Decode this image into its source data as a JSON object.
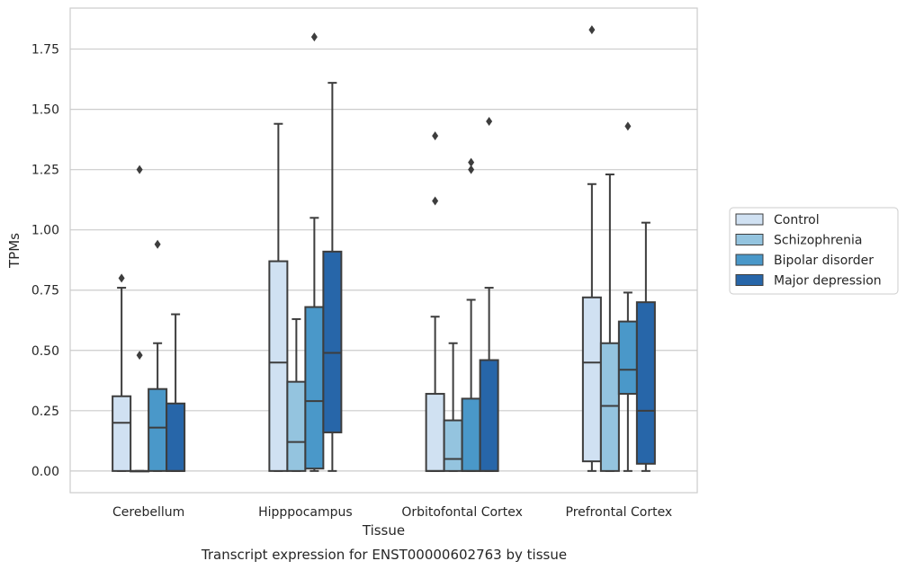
{
  "caption": "Transcript expression for ENST00000602763 by tissue",
  "chart_data": {
    "type": "box",
    "xlabel": "Tissue",
    "ylabel": "TPMs",
    "ylim": [
      -0.09,
      1.92
    ],
    "yticks": [
      0.0,
      0.25,
      0.5,
      0.75,
      1.0,
      1.25,
      1.5,
      1.75
    ],
    "ytick_labels": [
      "0.00",
      "0.25",
      "0.50",
      "0.75",
      "1.00",
      "1.25",
      "1.50",
      "1.75"
    ],
    "categories": [
      "Cerebellum",
      "Hipppocampus",
      "Orbitofontal Cortex",
      "Prefrontal Cortex"
    ],
    "grid": "horizontal",
    "legend_position": "right",
    "series": [
      {
        "name": "Control",
        "color": "#d0e1f2",
        "boxes": [
          {
            "min": 0.0,
            "q1": 0.0,
            "median": 0.2,
            "q3": 0.31,
            "max": 0.76,
            "outliers": [
              0.8
            ]
          },
          {
            "min": 0.0,
            "q1": 0.0,
            "median": 0.45,
            "q3": 0.87,
            "max": 1.44,
            "outliers": []
          },
          {
            "min": 0.0,
            "q1": 0.0,
            "median": 0.0,
            "q3": 0.32,
            "max": 0.64,
            "outliers": [
              1.12,
              1.39
            ]
          },
          {
            "min": 0.0,
            "q1": 0.04,
            "median": 0.45,
            "q3": 0.72,
            "max": 1.19,
            "outliers": [
              1.83
            ]
          }
        ]
      },
      {
        "name": "Schizophrenia",
        "color": "#94c4df",
        "boxes": [
          {
            "min": 0.0,
            "q1": 0.0,
            "median": 0.0,
            "q3": 0.0,
            "max": 0.0,
            "outliers": [
              0.48,
              1.25
            ]
          },
          {
            "min": 0.0,
            "q1": 0.0,
            "median": 0.12,
            "q3": 0.37,
            "max": 0.63,
            "outliers": []
          },
          {
            "min": 0.0,
            "q1": 0.0,
            "median": 0.05,
            "q3": 0.21,
            "max": 0.53,
            "outliers": []
          },
          {
            "min": 0.0,
            "q1": 0.0,
            "median": 0.27,
            "q3": 0.53,
            "max": 1.23,
            "outliers": []
          }
        ]
      },
      {
        "name": "Bipolar disorder",
        "color": "#4a98c9",
        "boxes": [
          {
            "min": 0.0,
            "q1": 0.0,
            "median": 0.18,
            "q3": 0.34,
            "max": 0.53,
            "outliers": [
              0.94
            ]
          },
          {
            "min": 0.0,
            "q1": 0.01,
            "median": 0.29,
            "q3": 0.68,
            "max": 1.05,
            "outliers": [
              1.8
            ]
          },
          {
            "min": 0.0,
            "q1": 0.0,
            "median": 0.0,
            "q3": 0.3,
            "max": 0.71,
            "outliers": [
              1.25,
              1.28
            ]
          },
          {
            "min": 0.0,
            "q1": 0.32,
            "median": 0.42,
            "q3": 0.62,
            "max": 0.74,
            "outliers": [
              1.43
            ]
          }
        ]
      },
      {
        "name": "Major depression",
        "color": "#2766a9",
        "boxes": [
          {
            "min": 0.0,
            "q1": 0.0,
            "median": 0.0,
            "q3": 0.28,
            "max": 0.65,
            "outliers": []
          },
          {
            "min": 0.0,
            "q1": 0.16,
            "median": 0.49,
            "q3": 0.91,
            "max": 1.61,
            "outliers": []
          },
          {
            "min": 0.0,
            "q1": 0.0,
            "median": 0.0,
            "q3": 0.46,
            "max": 0.76,
            "outliers": [
              1.45
            ]
          },
          {
            "min": 0.0,
            "q1": 0.03,
            "median": 0.25,
            "q3": 0.7,
            "max": 1.03,
            "outliers": []
          }
        ]
      }
    ]
  }
}
